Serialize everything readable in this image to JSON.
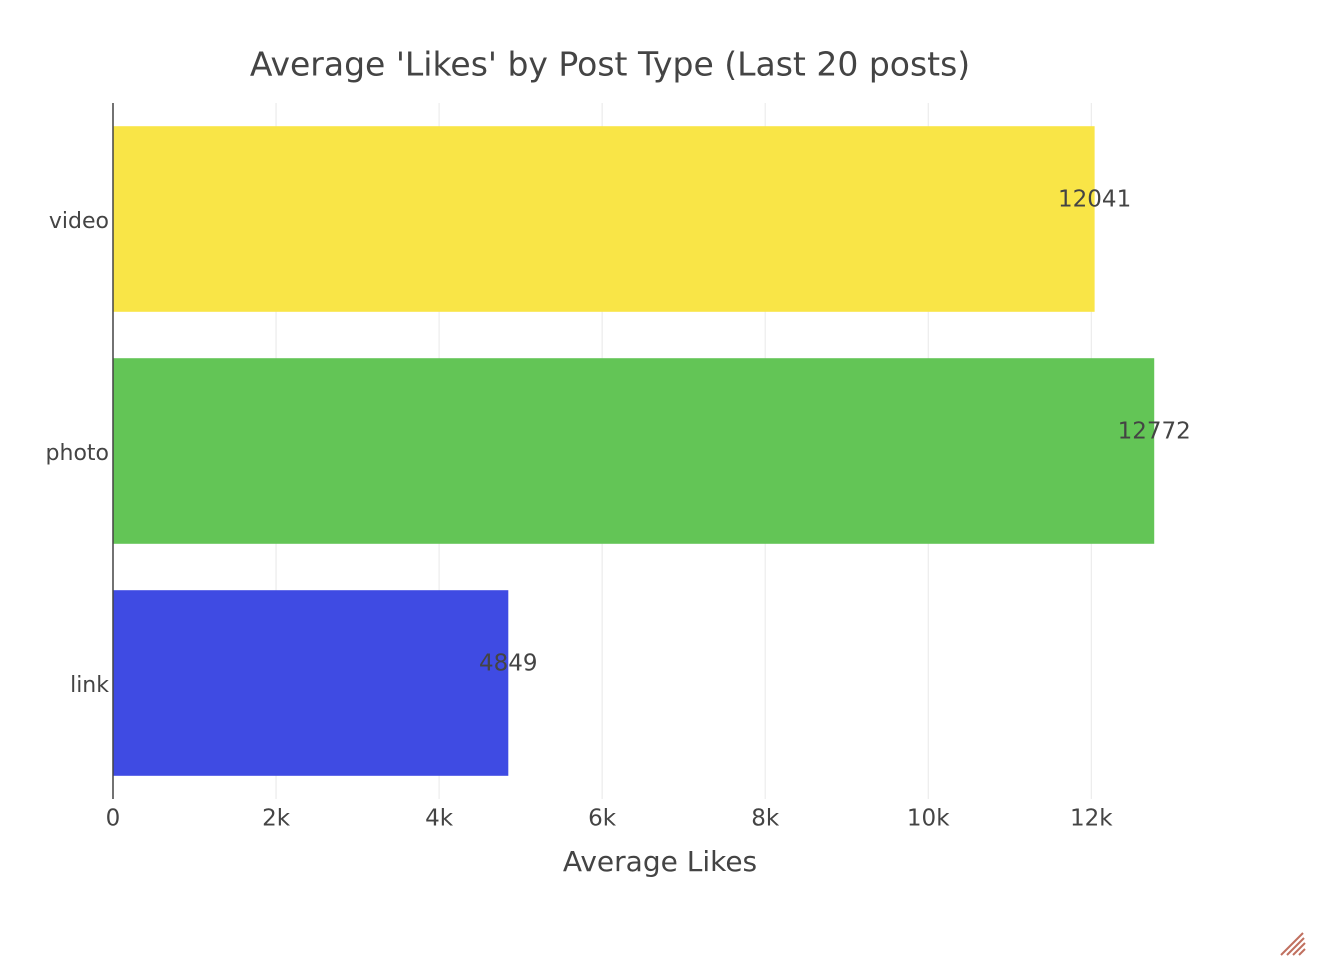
{
  "chart_data": {
    "type": "hbar",
    "title": "Average 'Likes' by Post Type (Last 20 posts)",
    "x_label": "Average Likes",
    "categories": [
      "video",
      "photo",
      "link"
    ],
    "values": [
      12041,
      12772,
      4849
    ],
    "colors": [
      "#f9e547",
      "#63c556",
      "#3f4be3"
    ],
    "xlim": [
      0,
      13444
    ],
    "xticks": [
      0,
      {
        "value": 2000,
        "label": "2k"
      },
      {
        "value": 4000,
        "label": "4k"
      },
      {
        "value": 6000,
        "label": "6k"
      },
      {
        "value": 8000,
        "label": "8k"
      },
      {
        "value": 10000,
        "label": "10k"
      },
      {
        "value": 12000,
        "label": "12k"
      }
    ],
    "grid": true
  }
}
